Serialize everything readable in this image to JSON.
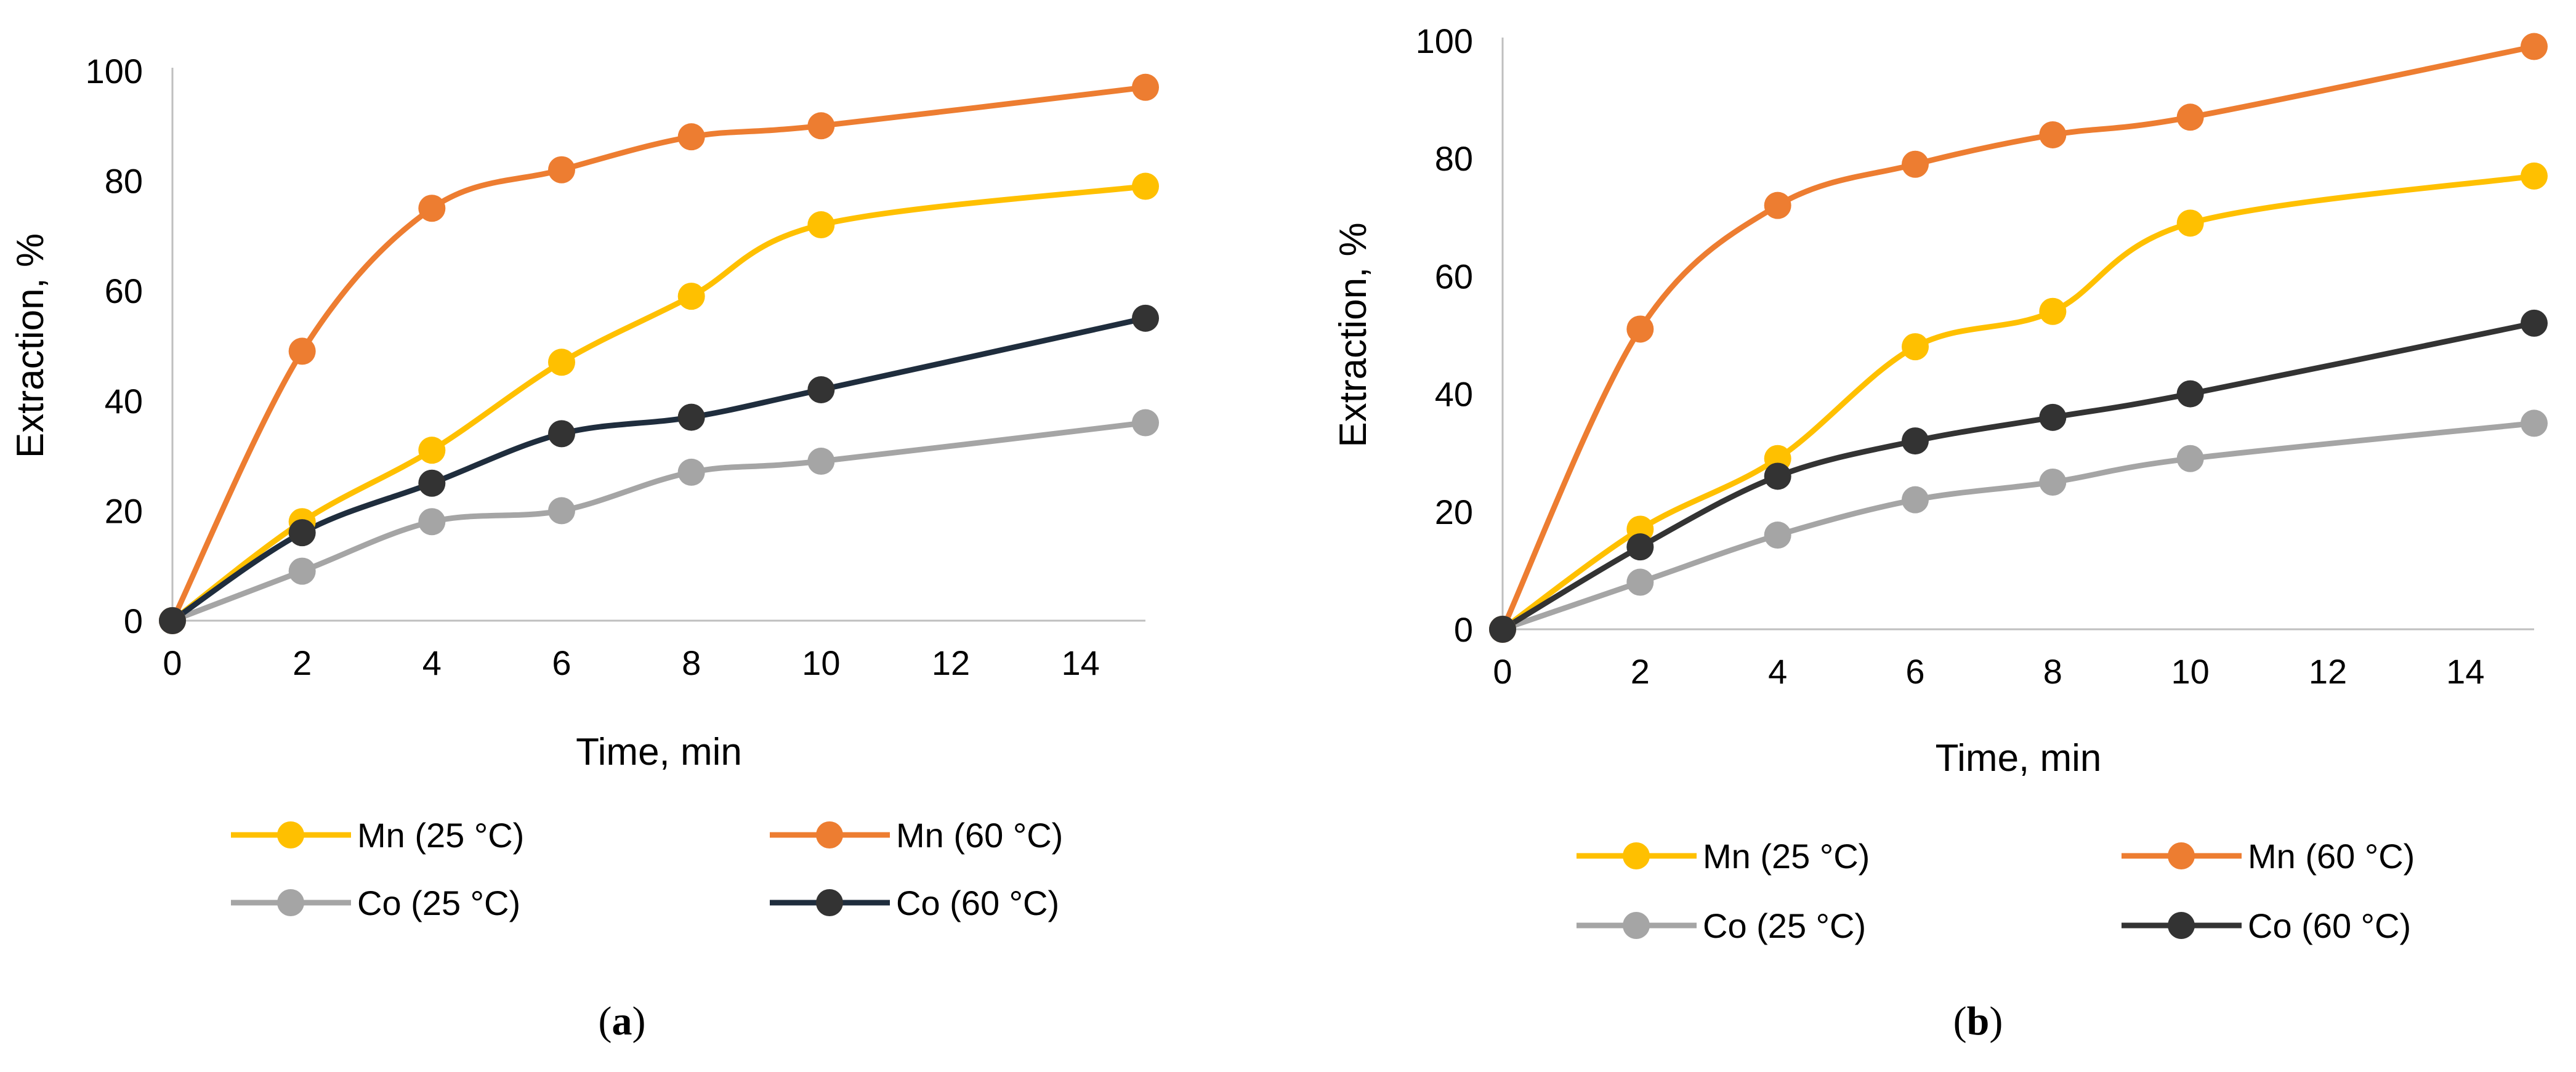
{
  "chart_data": [
    {
      "type": "line",
      "caption": {
        "open": "(",
        "letter": "a",
        "close": ")"
      },
      "xlabel": "Time, min",
      "ylabel": "Extraction, %",
      "xlim": [
        0,
        15
      ],
      "ylim": [
        0,
        100
      ],
      "xticks": [
        0,
        2,
        4,
        6,
        8,
        10,
        12,
        14
      ],
      "yticks": [
        0,
        20,
        40,
        60,
        80,
        100
      ],
      "grid": false,
      "legend_position": "bottom",
      "x": [
        0,
        2,
        4,
        6,
        8,
        10,
        15
      ],
      "series": [
        {
          "name": "Mn (25 °C)",
          "color": "#FFC000",
          "values": [
            0,
            18,
            31,
            47,
            59,
            72,
            79
          ]
        },
        {
          "name": "Mn (60 °C)",
          "color": "#ED7D31",
          "values": [
            0,
            49,
            75,
            82,
            88,
            90,
            97
          ]
        },
        {
          "name": "Co (25 °C)",
          "color": "#A5A5A5",
          "values": [
            0,
            9,
            18,
            20,
            27,
            29,
            36
          ]
        },
        {
          "name": "Co (60 °C)",
          "color": "#1F2D3D",
          "marker_color": "#333333",
          "values": [
            0,
            16,
            25,
            34,
            37,
            42,
            55
          ]
        }
      ]
    },
    {
      "type": "line",
      "caption": {
        "open": "(",
        "letter": "b",
        "close": ")"
      },
      "xlabel": "Time, min",
      "ylabel": "Extraction, %",
      "xlim": [
        0,
        15
      ],
      "ylim": [
        0,
        100
      ],
      "xticks": [
        0,
        2,
        4,
        6,
        8,
        10,
        12,
        14
      ],
      "yticks": [
        0,
        20,
        40,
        60,
        80,
        100
      ],
      "grid": false,
      "legend_position": "bottom",
      "x": [
        0,
        2,
        4,
        6,
        8,
        10,
        15
      ],
      "series": [
        {
          "name": "Mn (25 °C)",
          "color": "#FFC000",
          "values": [
            0,
            17,
            29,
            48,
            54,
            69,
            77
          ]
        },
        {
          "name": "Mn (60 °C)",
          "color": "#ED7D31",
          "values": [
            0,
            51,
            72,
            79,
            84,
            87,
            99
          ]
        },
        {
          "name": "Co (25 °C)",
          "color": "#A5A5A5",
          "values": [
            0,
            8,
            16,
            22,
            25,
            29,
            35
          ]
        },
        {
          "name": "Co (60 °C)",
          "color": "#333333",
          "values": [
            0,
            14,
            26,
            32,
            36,
            40,
            52
          ]
        }
      ]
    }
  ]
}
